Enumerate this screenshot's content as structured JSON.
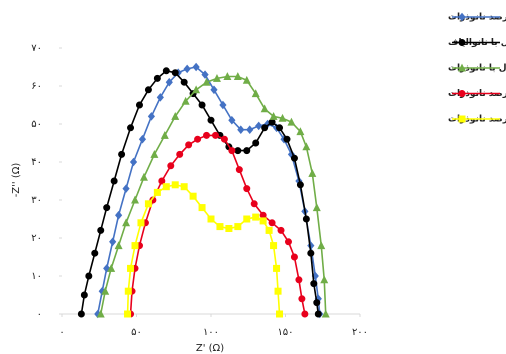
{
  "chart_data": {
    "type": "line",
    "x_label": "Z' (Ω)",
    "y_label": "-Z'' (Ω)",
    "xlim": [
      0,
      200
    ],
    "ylim": [
      0,
      70
    ],
    "xticks": [
      {
        "value": 0,
        "label": "۰"
      },
      {
        "value": 50,
        "label": "۵۰"
      },
      {
        "value": 100,
        "label": "۱۰۰"
      },
      {
        "value": 150,
        "label": "۱۵۰"
      },
      {
        "value": 200,
        "label": "۲۰۰"
      }
    ],
    "yticks": [
      {
        "value": 0,
        "label": "۰"
      },
      {
        "value": 10,
        "label": "۱۰"
      },
      {
        "value": 20,
        "label": "۲۰"
      },
      {
        "value": 30,
        "label": "۳۰"
      },
      {
        "value": 40,
        "label": "۴۰"
      },
      {
        "value": 50,
        "label": "۵۰"
      },
      {
        "value": 60,
        "label": "۶۰"
      },
      {
        "value": 70,
        "label": "۷۰"
      }
    ],
    "grid": false,
    "legend": "top-right",
    "series": [
      {
        "name": "سلول با ترکیب نانوالیاف و ۲۰ درصد نانوذرات",
        "color": "#4472c4",
        "marker": "diamond",
        "x": [
          24,
          27,
          30,
          34,
          38,
          43,
          48,
          54,
          60,
          66,
          72,
          78,
          84,
          90,
          96,
          102,
          108,
          114,
          120,
          126,
          132,
          138,
          144,
          149,
          154,
          159,
          163,
          167,
          170,
          172,
          173
        ],
        "values": [
          0,
          6,
          12,
          19,
          26,
          33,
          40,
          46,
          52,
          57,
          61,
          63.5,
          64.5,
          65,
          63,
          59,
          55,
          51,
          48.5,
          48.5,
          49.5,
          50,
          49,
          46,
          42,
          35,
          27,
          18,
          10,
          4,
          0
        ]
      },
      {
        "name": "سلول با نانوالیاف",
        "color": "#000000",
        "marker": "circle",
        "x": [
          13,
          15,
          18,
          22,
          26,
          30,
          35,
          40,
          46,
          52,
          58,
          64,
          70,
          76,
          82,
          88,
          94,
          100,
          106,
          112,
          118,
          124,
          130,
          136,
          141,
          146,
          151,
          156,
          160,
          164,
          167,
          169,
          171,
          172
        ],
        "values": [
          0,
          5,
          10,
          16,
          22,
          28,
          35,
          42,
          49,
          55,
          59,
          62,
          64,
          63.5,
          61,
          58,
          55,
          51,
          47,
          44,
          43,
          43,
          45,
          49,
          50.5,
          49,
          46,
          41,
          34,
          25,
          16,
          8,
          3,
          0
        ]
      },
      {
        "name": "سلول با نانوذرات",
        "color": "#70ad47",
        "marker": "triangle",
        "x": [
          26,
          29,
          33,
          38,
          43,
          49,
          55,
          62,
          69,
          76,
          83,
          90,
          97,
          104,
          111,
          118,
          124,
          130,
          136,
          142,
          148,
          154,
          160,
          164,
          168,
          171,
          174,
          176,
          177
        ],
        "values": [
          0,
          6,
          12,
          18,
          24,
          30,
          36,
          42,
          47,
          52,
          56,
          59,
          61,
          62,
          62.5,
          62.5,
          61.5,
          58,
          54,
          52,
          51.5,
          50.5,
          48,
          44,
          37,
          28,
          18,
          9,
          0
        ]
      },
      {
        "name": "سلول با ترکیب نانوالیاف و ۳۰ درصد نانوذرات",
        "color": "#e8001c",
        "marker": "circle",
        "x": [
          46,
          47,
          49,
          52,
          56,
          61,
          67,
          73,
          79,
          85,
          91,
          97,
          103,
          109,
          114,
          119,
          124,
          129,
          135,
          141,
          147,
          152,
          156,
          159,
          161,
          163
        ],
        "values": [
          0,
          6,
          12,
          18,
          24,
          30,
          35,
          39,
          42,
          44.5,
          46,
          47,
          47,
          46,
          43,
          38,
          33,
          29,
          26,
          24,
          22,
          19,
          15,
          9,
          4,
          0
        ]
      },
      {
        "name": "سلول با ترکیب نانوالیاف و ۴۰ درصد نانوذرات",
        "color": "#ffff00",
        "marker": "square",
        "x": [
          44,
          44.5,
          46,
          49,
          53,
          58,
          64,
          70,
          76,
          82,
          88,
          94,
          100,
          106,
          112,
          118,
          124,
          130,
          135,
          139,
          142,
          144,
          145,
          146
        ],
        "values": [
          0,
          6,
          12,
          18,
          24,
          29,
          32,
          33.5,
          34,
          33.5,
          31,
          28,
          25,
          23,
          22.5,
          23,
          25,
          25.5,
          24.5,
          22,
          18,
          12,
          6,
          0
        ]
      }
    ]
  }
}
